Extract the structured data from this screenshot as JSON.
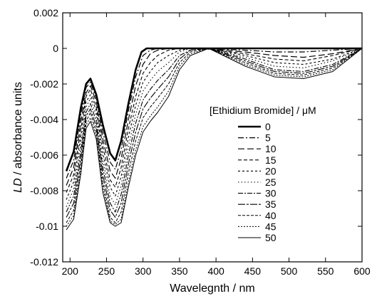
{
  "chart_data": {
    "type": "line",
    "title": "",
    "xlabel": "Wavelegnth / nm",
    "ylabel_italic": "LD",
    "ylabel_rest": " / absorbance units",
    "xlim": [
      190,
      600
    ],
    "ylim": [
      -0.012,
      0.002
    ],
    "x_ticks": [
      200,
      250,
      300,
      350,
      400,
      450,
      500,
      550,
      600
    ],
    "x_tick_labels": [
      "200",
      "250",
      "300",
      "350",
      "400",
      "450",
      "500",
      "550",
      "600"
    ],
    "y_ticks": [
      -0.012,
      -0.01,
      -0.008,
      -0.006,
      -0.004,
      -0.002,
      0,
      0.002
    ],
    "y_tick_labels": [
      "-0.012",
      "-0.01",
      "-0.008",
      "-0.006",
      "-0.004",
      "-0.002",
      "0",
      "0.002"
    ],
    "grid": false,
    "legend": {
      "title": "[Ethidium Bromide] / μM",
      "placement": "right"
    },
    "series": [
      {
        "name": "0",
        "dash": "",
        "width": 2.6,
        "points": [
          [
            195,
            -0.0069
          ],
          [
            205,
            -0.0058
          ],
          [
            215,
            -0.0033
          ],
          [
            222,
            -0.002
          ],
          [
            228,
            -0.0017
          ],
          [
            236,
            -0.0026
          ],
          [
            245,
            -0.0043
          ],
          [
            255,
            -0.0059
          ],
          [
            262,
            -0.0063
          ],
          [
            270,
            -0.0052
          ],
          [
            280,
            -0.0031
          ],
          [
            290,
            -0.0012
          ],
          [
            298,
            -0.0002
          ],
          [
            305,
            0
          ],
          [
            320,
            0
          ],
          [
            380,
            0
          ],
          [
            440,
            0
          ],
          [
            520,
            0
          ],
          [
            600,
            0
          ]
        ]
      },
      {
        "name": "5",
        "dash": "8,3,2,3",
        "width": 1.2,
        "points": [
          [
            195,
            -0.0073
          ],
          [
            205,
            -0.0063
          ],
          [
            215,
            -0.0037
          ],
          [
            222,
            -0.0022
          ],
          [
            228,
            -0.0019
          ],
          [
            236,
            -0.0028
          ],
          [
            245,
            -0.0047
          ],
          [
            255,
            -0.0064
          ],
          [
            262,
            -0.0068
          ],
          [
            270,
            -0.0057
          ],
          [
            280,
            -0.0035
          ],
          [
            290,
            -0.0016
          ],
          [
            300,
            -0.0004
          ],
          [
            310,
            -0.0001
          ],
          [
            320,
            0
          ],
          [
            380,
            0
          ],
          [
            440,
            -0.0001
          ],
          [
            480,
            -0.0002
          ],
          [
            520,
            -0.0002
          ],
          [
            560,
            -0.0001
          ],
          [
            600,
            0
          ]
        ]
      },
      {
        "name": "10",
        "dash": "9,4",
        "width": 1.2,
        "points": [
          [
            195,
            -0.0077
          ],
          [
            205,
            -0.0067
          ],
          [
            215,
            -0.0041
          ],
          [
            222,
            -0.0025
          ],
          [
            228,
            -0.0021
          ],
          [
            236,
            -0.003
          ],
          [
            245,
            -0.0051
          ],
          [
            255,
            -0.0069
          ],
          [
            262,
            -0.0073
          ],
          [
            270,
            -0.0062
          ],
          [
            280,
            -0.004
          ],
          [
            290,
            -0.0021
          ],
          [
            300,
            -0.0009
          ],
          [
            310,
            -0.0003
          ],
          [
            320,
            -0.0001
          ],
          [
            335,
            0
          ],
          [
            380,
            0
          ],
          [
            440,
            -0.0002
          ],
          [
            480,
            -0.0004
          ],
          [
            520,
            -0.0005
          ],
          [
            560,
            -0.0003
          ],
          [
            600,
            0
          ]
        ]
      },
      {
        "name": "15",
        "dash": "5,3",
        "width": 1.1,
        "points": [
          [
            195,
            -0.0081
          ],
          [
            205,
            -0.0071
          ],
          [
            215,
            -0.0045
          ],
          [
            222,
            -0.0027
          ],
          [
            228,
            -0.0023
          ],
          [
            236,
            -0.0033
          ],
          [
            245,
            -0.0055
          ],
          [
            255,
            -0.0074
          ],
          [
            262,
            -0.0078
          ],
          [
            270,
            -0.0067
          ],
          [
            280,
            -0.0045
          ],
          [
            290,
            -0.0027
          ],
          [
            300,
            -0.0014
          ],
          [
            310,
            -0.0008
          ],
          [
            320,
            -0.0004
          ],
          [
            335,
            -0.0001
          ],
          [
            350,
            0
          ],
          [
            380,
            0
          ],
          [
            440,
            -0.0003
          ],
          [
            480,
            -0.0006
          ],
          [
            520,
            -0.0007
          ],
          [
            560,
            -0.0004
          ],
          [
            600,
            0
          ]
        ]
      },
      {
        "name": "20",
        "dash": "3,3",
        "width": 1.1,
        "points": [
          [
            195,
            -0.0085
          ],
          [
            205,
            -0.0075
          ],
          [
            215,
            -0.0049
          ],
          [
            222,
            -0.003
          ],
          [
            228,
            -0.0026
          ],
          [
            236,
            -0.0035
          ],
          [
            245,
            -0.0059
          ],
          [
            255,
            -0.0078
          ],
          [
            262,
            -0.0083
          ],
          [
            270,
            -0.0072
          ],
          [
            280,
            -0.005
          ],
          [
            290,
            -0.0032
          ],
          [
            300,
            -0.0019
          ],
          [
            310,
            -0.0013
          ],
          [
            320,
            -0.0008
          ],
          [
            335,
            -0.0004
          ],
          [
            350,
            -0.0001
          ],
          [
            365,
            0
          ],
          [
            390,
            0
          ],
          [
            440,
            -0.0004
          ],
          [
            480,
            -0.0008
          ],
          [
            520,
            -0.0009
          ],
          [
            560,
            -0.0006
          ],
          [
            600,
            0
          ]
        ]
      },
      {
        "name": "25",
        "dash": "1.5,3",
        "width": 1.1,
        "points": [
          [
            195,
            -0.0089
          ],
          [
            205,
            -0.0079
          ],
          [
            215,
            -0.0053
          ],
          [
            222,
            -0.0033
          ],
          [
            228,
            -0.0028
          ],
          [
            236,
            -0.0038
          ],
          [
            245,
            -0.0063
          ],
          [
            255,
            -0.0083
          ],
          [
            262,
            -0.0088
          ],
          [
            270,
            -0.0077
          ],
          [
            280,
            -0.0055
          ],
          [
            290,
            -0.0037
          ],
          [
            300,
            -0.0024
          ],
          [
            310,
            -0.0018
          ],
          [
            320,
            -0.0013
          ],
          [
            335,
            -0.0008
          ],
          [
            350,
            -0.0002
          ],
          [
            365,
            0
          ],
          [
            390,
            0
          ],
          [
            440,
            -0.0005
          ],
          [
            480,
            -0.001
          ],
          [
            520,
            -0.0011
          ],
          [
            560,
            -0.0007
          ],
          [
            600,
            0
          ]
        ]
      },
      {
        "name": "30",
        "dash": "7,2,2,2",
        "width": 1.1,
        "points": [
          [
            195,
            -0.0092
          ],
          [
            205,
            -0.0083
          ],
          [
            215,
            -0.0057
          ],
          [
            222,
            -0.0036
          ],
          [
            228,
            -0.0031
          ],
          [
            236,
            -0.0041
          ],
          [
            245,
            -0.0067
          ],
          [
            255,
            -0.0087
          ],
          [
            262,
            -0.0092
          ],
          [
            270,
            -0.0082
          ],
          [
            280,
            -0.006
          ],
          [
            290,
            -0.0042
          ],
          [
            300,
            -0.0029
          ],
          [
            310,
            -0.0023
          ],
          [
            320,
            -0.0018
          ],
          [
            335,
            -0.0012
          ],
          [
            350,
            -0.0004
          ],
          [
            365,
            -0.0001
          ],
          [
            390,
            0
          ],
          [
            440,
            -0.0006
          ],
          [
            480,
            -0.0012
          ],
          [
            520,
            -0.0013
          ],
          [
            560,
            -0.0009
          ],
          [
            600,
            0
          ]
        ]
      },
      {
        "name": "35",
        "dash": "10,2,3,2",
        "width": 1.1,
        "points": [
          [
            195,
            -0.0095
          ],
          [
            205,
            -0.0087
          ],
          [
            215,
            -0.0061
          ],
          [
            222,
            -0.0038
          ],
          [
            228,
            -0.0034
          ],
          [
            236,
            -0.0044
          ],
          [
            245,
            -0.0071
          ],
          [
            255,
            -0.0091
          ],
          [
            262,
            -0.0095
          ],
          [
            270,
            -0.0087
          ],
          [
            280,
            -0.0065
          ],
          [
            290,
            -0.0047
          ],
          [
            300,
            -0.0034
          ],
          [
            310,
            -0.0028
          ],
          [
            320,
            -0.0023
          ],
          [
            335,
            -0.0016
          ],
          [
            350,
            -0.0006
          ],
          [
            365,
            -0.0001
          ],
          [
            390,
            0
          ],
          [
            440,
            -0.0007
          ],
          [
            480,
            -0.0013
          ],
          [
            520,
            -0.0014
          ],
          [
            560,
            -0.001
          ],
          [
            600,
            0
          ]
        ]
      },
      {
        "name": "40",
        "dash": "4,2",
        "width": 1.0,
        "points": [
          [
            195,
            -0.0098
          ],
          [
            205,
            -0.0091
          ],
          [
            215,
            -0.0065
          ],
          [
            222,
            -0.0041
          ],
          [
            228,
            -0.0036
          ],
          [
            236,
            -0.0047
          ],
          [
            245,
            -0.0075
          ],
          [
            255,
            -0.0095
          ],
          [
            262,
            -0.0098
          ],
          [
            270,
            -0.0092
          ],
          [
            280,
            -0.007
          ],
          [
            290,
            -0.0052
          ],
          [
            300,
            -0.0039
          ],
          [
            310,
            -0.0033
          ],
          [
            320,
            -0.0028
          ],
          [
            335,
            -0.002
          ],
          [
            350,
            -0.0008
          ],
          [
            365,
            -0.0002
          ],
          [
            390,
            0
          ],
          [
            440,
            -0.0008
          ],
          [
            480,
            -0.0014
          ],
          [
            520,
            -0.0015
          ],
          [
            560,
            -0.0011
          ],
          [
            600,
            0
          ]
        ]
      },
      {
        "name": "45",
        "dash": "2,2",
        "width": 1.0,
        "points": [
          [
            195,
            -0.01
          ],
          [
            205,
            -0.0094
          ],
          [
            215,
            -0.0068
          ],
          [
            222,
            -0.0043
          ],
          [
            228,
            -0.0039
          ],
          [
            236,
            -0.0049
          ],
          [
            245,
            -0.0078
          ],
          [
            255,
            -0.0097
          ],
          [
            262,
            -0.0099
          ],
          [
            270,
            -0.0096
          ],
          [
            280,
            -0.0075
          ],
          [
            290,
            -0.0057
          ],
          [
            300,
            -0.0044
          ],
          [
            310,
            -0.0038
          ],
          [
            320,
            -0.0033
          ],
          [
            335,
            -0.0024
          ],
          [
            350,
            -0.001
          ],
          [
            365,
            -0.0003
          ],
          [
            390,
            0
          ],
          [
            440,
            -0.0009
          ],
          [
            480,
            -0.0015
          ],
          [
            520,
            -0.0016
          ],
          [
            560,
            -0.0012
          ],
          [
            600,
            0
          ]
        ]
      },
      {
        "name": "50",
        "dash": "",
        "width": 1.0,
        "points": [
          [
            195,
            -0.0102
          ],
          [
            205,
            -0.0096
          ],
          [
            215,
            -0.007
          ],
          [
            222,
            -0.0045
          ],
          [
            228,
            -0.0041
          ],
          [
            236,
            -0.0051
          ],
          [
            245,
            -0.0081
          ],
          [
            255,
            -0.0098
          ],
          [
            262,
            -0.01
          ],
          [
            270,
            -0.0098
          ],
          [
            280,
            -0.0078
          ],
          [
            290,
            -0.006
          ],
          [
            300,
            -0.0047
          ],
          [
            310,
            -0.0041
          ],
          [
            320,
            -0.0036
          ],
          [
            335,
            -0.0027
          ],
          [
            350,
            -0.0012
          ],
          [
            365,
            -0.0004
          ],
          [
            390,
            0
          ],
          [
            440,
            -0.001
          ],
          [
            480,
            -0.0016
          ],
          [
            520,
            -0.0017
          ],
          [
            560,
            -0.0013
          ],
          [
            600,
            0
          ]
        ]
      }
    ]
  }
}
